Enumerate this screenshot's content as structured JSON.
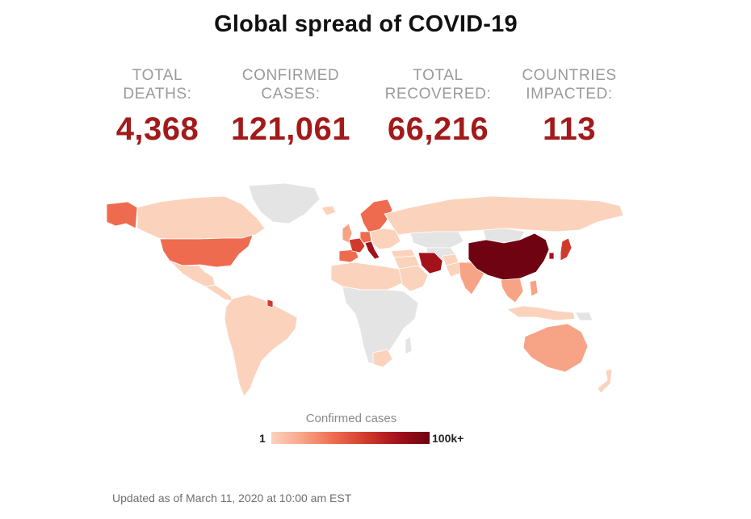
{
  "title": "Global spread of COVID-19",
  "stats": [
    {
      "label_line1": "TOTAL",
      "label_line2": "DEATHS:",
      "value": "4,368"
    },
    {
      "label_line1": "CONFIRMED",
      "label_line2": "CASES:",
      "value": "121,061"
    },
    {
      "label_line1": "TOTAL",
      "label_line2": "RECOVERED:",
      "value": "66,216"
    },
    {
      "label_line1": "COUNTRIES",
      "label_line2": "IMPACTED:",
      "value": "113"
    }
  ],
  "legend": {
    "title": "Confirmed cases",
    "min_label": "1",
    "max_label": "100k+",
    "colors": [
      "#fbd3bd",
      "#f7a386",
      "#ee6b4f",
      "#d03a2c",
      "#a3111b",
      "#6f0312"
    ]
  },
  "footer": {
    "updated": "Updated as of March 11, 2020 at 10:00 am EST"
  },
  "map": {
    "no_data_color": "#e4e4e4",
    "regions": [
      {
        "name": "Greenland",
        "shade": "none"
      },
      {
        "name": "Alaska",
        "shade": "level3"
      },
      {
        "name": "Canada",
        "shade": "level1"
      },
      {
        "name": "United States",
        "shade": "level3"
      },
      {
        "name": "Mexico",
        "shade": "level1"
      },
      {
        "name": "Central America",
        "shade": "level1"
      },
      {
        "name": "South America",
        "shade": "level1"
      },
      {
        "name": "French Guiana",
        "shade": "level4"
      },
      {
        "name": "Iceland",
        "shade": "level1"
      },
      {
        "name": "Scandinavia",
        "shade": "level3"
      },
      {
        "name": "United Kingdom",
        "shade": "level2"
      },
      {
        "name": "Spain",
        "shade": "level3"
      },
      {
        "name": "France",
        "shade": "level4"
      },
      {
        "name": "Germany",
        "shade": "level3"
      },
      {
        "name": "Italy",
        "shade": "level5"
      },
      {
        "name": "Eastern Europe",
        "shade": "level1"
      },
      {
        "name": "Russia",
        "shade": "level1"
      },
      {
        "name": "Kazakhstan",
        "shade": "none"
      },
      {
        "name": "Central Asia",
        "shade": "none"
      },
      {
        "name": "Mongolia",
        "shade": "none"
      },
      {
        "name": "Turkey",
        "shade": "level1"
      },
      {
        "name": "Middle East",
        "shade": "level1"
      },
      {
        "name": "Saudi Arabia",
        "shade": "level1"
      },
      {
        "name": "Iran",
        "shade": "level5"
      },
      {
        "name": "Afghanistan",
        "shade": "level1"
      },
      {
        "name": "Pakistan",
        "shade": "level1"
      },
      {
        "name": "India",
        "shade": "level2"
      },
      {
        "name": "China",
        "shade": "level6"
      },
      {
        "name": "South Korea",
        "shade": "level5"
      },
      {
        "name": "Japan",
        "shade": "level4"
      },
      {
        "name": "Southeast Asia",
        "shade": "level2"
      },
      {
        "name": "Indonesia",
        "shade": "level1"
      },
      {
        "name": "Philippines",
        "shade": "level2"
      },
      {
        "name": "North Africa",
        "shade": "level1"
      },
      {
        "name": "Africa",
        "shade": "none"
      },
      {
        "name": "South Africa",
        "shade": "level1"
      },
      {
        "name": "Madagascar",
        "shade": "none"
      },
      {
        "name": "Australia",
        "shade": "level2"
      },
      {
        "name": "Papua New Guinea",
        "shade": "none"
      },
      {
        "name": "New Zealand",
        "shade": "level1"
      }
    ]
  }
}
